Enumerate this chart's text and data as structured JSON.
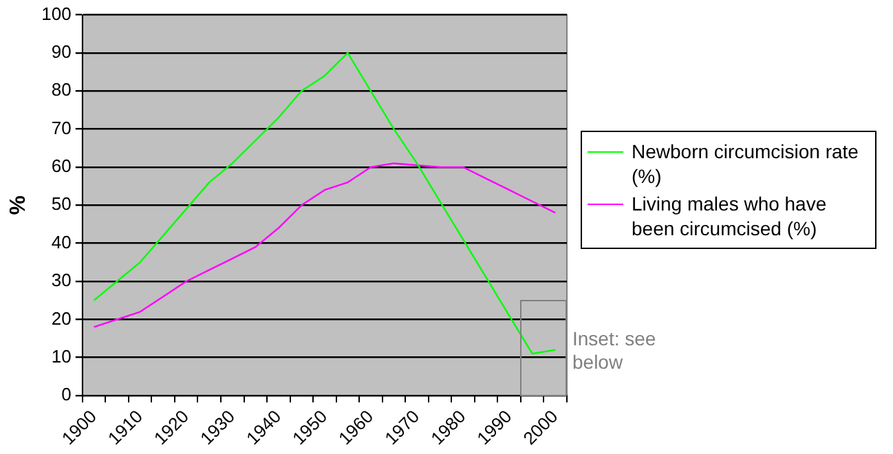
{
  "chart_data": {
    "type": "line",
    "ylabel": "%",
    "categories": [
      "1900",
      null,
      "1910",
      null,
      "1920",
      null,
      "1930",
      null,
      "1940",
      null,
      "1950",
      null,
      "1960",
      null,
      "1970",
      null,
      "1980",
      null,
      "1990",
      null,
      "2000"
    ],
    "series": [
      {
        "name": "Newborn circumcision rate (%)",
        "color": "#00ff00",
        "values": [
          25,
          30,
          35,
          42,
          49,
          56,
          61,
          67,
          73,
          80,
          84,
          90,
          80,
          70,
          61,
          51,
          41,
          31,
          21,
          11,
          12
        ]
      },
      {
        "name": "Living males who have been circumcised (%)",
        "color": "#ff00ff",
        "values": [
          18,
          20,
          22,
          26,
          30,
          33,
          36,
          39,
          44,
          50,
          54,
          56,
          60,
          61,
          60.5,
          60,
          60,
          57,
          54,
          51,
          48
        ]
      }
    ],
    "ylim": [
      0,
      100
    ],
    "yticks": [
      0,
      10,
      20,
      30,
      40,
      50,
      60,
      70,
      80,
      90,
      100
    ],
    "grid": "y",
    "legend": "right",
    "marker": "none",
    "line_style": "solid",
    "annotations": [
      "Inset: see below"
    ]
  }
}
